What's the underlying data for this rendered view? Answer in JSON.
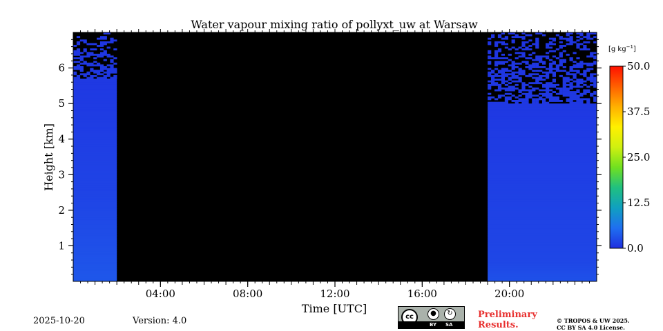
{
  "chart_data": {
    "type": "heatmap",
    "title": "Water vapour mixing ratio of pollyxt_uw at Warsaw",
    "xlabel": "Time [UTC]",
    "ylabel": "Height [km]",
    "xlim_hours": [
      0,
      24
    ],
    "ylim_km": [
      0,
      7
    ],
    "x_ticks": [
      {
        "hour": 4,
        "label": "04:00"
      },
      {
        "hour": 8,
        "label": "08:00"
      },
      {
        "hour": 12,
        "label": "12:00"
      },
      {
        "hour": 16,
        "label": "16:00"
      },
      {
        "hour": 20,
        "label": "20:00"
      }
    ],
    "y_ticks": [
      {
        "km": 1,
        "label": "1"
      },
      {
        "km": 2,
        "label": "2"
      },
      {
        "km": 3,
        "label": "3"
      },
      {
        "km": 4,
        "label": "4"
      },
      {
        "km": 5,
        "label": "5"
      },
      {
        "km": 6,
        "label": "6"
      }
    ],
    "no_data_interval_hours": [
      2.0,
      19.0
    ],
    "segments": [
      {
        "start_hour": 0.0,
        "end_hour": 2.0,
        "noisy_above_km": 5.7,
        "mixing_ratio_profile": [
          [
            0,
            3.5
          ],
          [
            1.4,
            2.5
          ],
          [
            2.5,
            1.8
          ],
          [
            5.0,
            1.0
          ],
          [
            7.0,
            0.5
          ]
        ]
      },
      {
        "start_hour": 19.0,
        "end_hour": 24.0,
        "noisy_above_km": 5.0,
        "mixing_ratio_profile": [
          [
            0,
            3.0
          ],
          [
            0.6,
            2.0
          ],
          [
            2.5,
            1.5
          ],
          [
            5.0,
            0.8
          ],
          [
            7.0,
            0.4
          ]
        ]
      }
    ],
    "colorbar": {
      "label": "[g kg$^{-1}$]",
      "label_display": "[g kg",
      "label_sup": "−1",
      "label_close": "]",
      "range": [
        0.0,
        50.0
      ],
      "ticks": [
        "0.0",
        "12.5",
        "25.0",
        "37.5",
        "50.0"
      ],
      "colormap": [
        "#1f2fe0",
        "#1f6ff0",
        "#10a0c0",
        "#20c080",
        "#70e020",
        "#d0f010",
        "#fff000",
        "#ffb000",
        "#ff6000",
        "#ff1000"
      ]
    }
  },
  "footer": {
    "date": "2025-10-20",
    "version": "Version: 4.0",
    "preliminary_line1": "Preliminary",
    "preliminary_line2": "Results.",
    "copyright_line1": "© TROPOS & UW 2025.",
    "copyright_line2": "CC BY SA 4.0 License.",
    "license_badge": {
      "cc": "cc",
      "by": "BY",
      "sa": "SA"
    }
  },
  "colors": {
    "no_data": "#000000",
    "preliminary_text": "#e8302f"
  }
}
